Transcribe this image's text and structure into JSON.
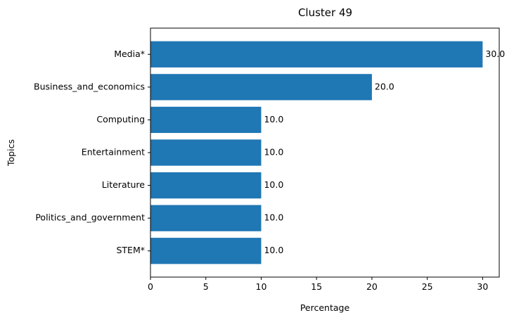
{
  "chart_data": {
    "type": "bar",
    "orientation": "horizontal",
    "title": "Cluster 49",
    "xlabel": "Percentage",
    "ylabel": "Topics",
    "categories": [
      "Media*",
      "Business_and_economics",
      "Computing",
      "Entertainment",
      "Literature",
      "Politics_and_government",
      "STEM*"
    ],
    "values": [
      30.0,
      20.0,
      10.0,
      10.0,
      10.0,
      10.0,
      10.0
    ],
    "data_labels": [
      "30.0",
      "20.0",
      "10.0",
      "10.0",
      "10.0",
      "10.0",
      "10.0"
    ],
    "xlim": [
      0,
      31.5
    ],
    "xticks": [
      0,
      5,
      10,
      15,
      20,
      25,
      30
    ],
    "grid": false,
    "bar_color": "#1f77b4"
  }
}
